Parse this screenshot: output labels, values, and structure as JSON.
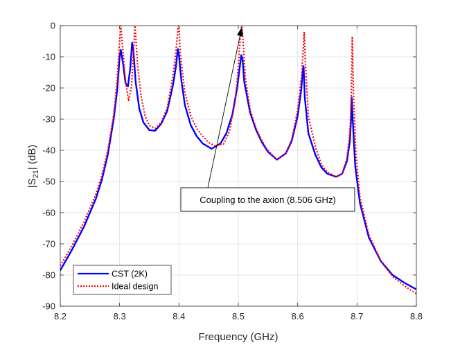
{
  "chart_data": {
    "type": "line",
    "title": "",
    "xlabel": "Frequency (GHz)",
    "ylabel": {
      "prefix": "|S",
      "sub": "21",
      "suffix": "| (dB)"
    },
    "xlim": [
      8.2,
      8.8
    ],
    "ylim": [
      -90,
      0
    ],
    "xticks": [
      8.2,
      8.3,
      8.4,
      8.5,
      8.6,
      8.7,
      8.8
    ],
    "xtick_labels": [
      "8.2",
      "8.3",
      "8.4",
      "8.5",
      "8.6",
      "8.7",
      "8.8"
    ],
    "yticks": [
      0,
      -10,
      -20,
      -30,
      -40,
      -50,
      -60,
      -70,
      -80,
      -90
    ],
    "ytick_labels": [
      "0",
      "-10",
      "-20",
      "-30",
      "-40",
      "-50",
      "-60",
      "-70",
      "-80",
      "-90"
    ],
    "grid": true,
    "legend_position": "bottom-left",
    "series": [
      {
        "name": "CST (2K)",
        "color": "#0000ff",
        "style": "solid",
        "x": [
          8.2,
          8.22,
          8.24,
          8.26,
          8.27,
          8.28,
          8.29,
          8.296,
          8.3,
          8.302,
          8.306,
          8.31,
          8.314,
          8.318,
          8.321,
          8.323,
          8.327,
          8.333,
          8.34,
          8.35,
          8.36,
          8.37,
          8.38,
          8.39,
          8.395,
          8.398,
          8.4,
          8.404,
          8.41,
          8.42,
          8.43,
          8.44,
          8.455,
          8.47,
          8.48,
          8.49,
          8.498,
          8.503,
          8.505,
          8.507,
          8.51,
          8.52,
          8.53,
          8.54,
          8.55,
          8.565,
          8.58,
          8.59,
          8.6,
          8.606,
          8.609,
          8.61,
          8.612,
          8.618,
          8.63,
          8.64,
          8.65,
          8.665,
          8.675,
          8.683,
          8.688,
          8.69,
          8.691,
          8.693,
          8.697,
          8.705,
          8.72,
          8.74,
          8.76,
          8.78,
          8.8
        ],
        "y": [
          -78.5,
          -71.8,
          -64.5,
          -55.5,
          -49.5,
          -41.5,
          -30.0,
          -20.5,
          -10.0,
          -7.8,
          -12.5,
          -18.5,
          -19.5,
          -13.5,
          -5.5,
          -7.5,
          -18.0,
          -26.5,
          -31.0,
          -33.5,
          -33.7,
          -31.5,
          -27.5,
          -19.0,
          -13.0,
          -7.5,
          -9.5,
          -17.5,
          -25.5,
          -32.0,
          -35.5,
          -37.8,
          -39.5,
          -37.8,
          -34.5,
          -28.5,
          -20.0,
          -12.5,
          -9.5,
          -10.5,
          -18.0,
          -28.0,
          -33.5,
          -37.5,
          -40.5,
          -43.0,
          -41.0,
          -37.0,
          -29.0,
          -20.5,
          -14.0,
          -13.0,
          -23.0,
          -34.5,
          -41.5,
          -45.5,
          -47.5,
          -48.5,
          -47.5,
          -43.5,
          -37.0,
          -30.0,
          -23.0,
          -31.0,
          -45.0,
          -57.0,
          -68.0,
          -75.5,
          -80.0,
          -82.5,
          -84.6
        ]
      },
      {
        "name": "Ideal design",
        "color": "#ff0000",
        "style": "dotted",
        "x": [
          8.2,
          8.22,
          8.24,
          8.26,
          8.27,
          8.28,
          8.29,
          8.296,
          8.3,
          8.302,
          8.306,
          8.31,
          8.315,
          8.32,
          8.324,
          8.326,
          8.33,
          8.336,
          8.343,
          8.35,
          8.36,
          8.37,
          8.38,
          8.39,
          8.395,
          8.3985,
          8.4,
          8.402,
          8.41,
          8.42,
          8.43,
          8.44,
          8.45,
          8.46,
          8.475,
          8.485,
          8.495,
          8.5,
          8.504,
          8.506,
          8.508,
          8.512,
          8.52,
          8.53,
          8.54,
          8.55,
          8.565,
          8.58,
          8.59,
          8.6,
          8.606,
          8.609,
          8.611,
          8.613,
          8.618,
          8.63,
          8.64,
          8.65,
          8.665,
          8.675,
          8.683,
          8.688,
          8.6905,
          8.692,
          8.694,
          8.698,
          8.705,
          8.72,
          8.74,
          8.76,
          8.78,
          8.8
        ],
        "y": [
          -77.0,
          -70.5,
          -63.0,
          -54.0,
          -48.0,
          -40.0,
          -28.5,
          -17.0,
          -5.0,
          0.0,
          -9.0,
          -18.0,
          -24.0,
          -19.5,
          -6.0,
          0.0,
          -12.0,
          -22.5,
          -29.0,
          -32.0,
          -33.0,
          -31.0,
          -26.5,
          -16.0,
          -8.0,
          -0.5,
          0.0,
          -8.5,
          -21.5,
          -29.0,
          -33.0,
          -35.5,
          -37.5,
          -38.5,
          -38.0,
          -34.0,
          -24.0,
          -13.0,
          -2.0,
          0.0,
          -5.0,
          -17.0,
          -27.0,
          -33.0,
          -37.0,
          -40.0,
          -43.0,
          -41.0,
          -36.5,
          -27.0,
          -17.0,
          -9.0,
          -2.0,
          -12.0,
          -29.0,
          -39.0,
          -44.5,
          -47.0,
          -48.5,
          -47.5,
          -42.5,
          -34.0,
          -22.0,
          -3.5,
          -21.0,
          -41.0,
          -55.0,
          -67.0,
          -75.5,
          -80.5,
          -83.5,
          -86.0
        ]
      }
    ],
    "annotation": {
      "text": "Coupling to the axion (8.506 GHz)",
      "target_x": 8.506,
      "target_y": 0
    }
  }
}
